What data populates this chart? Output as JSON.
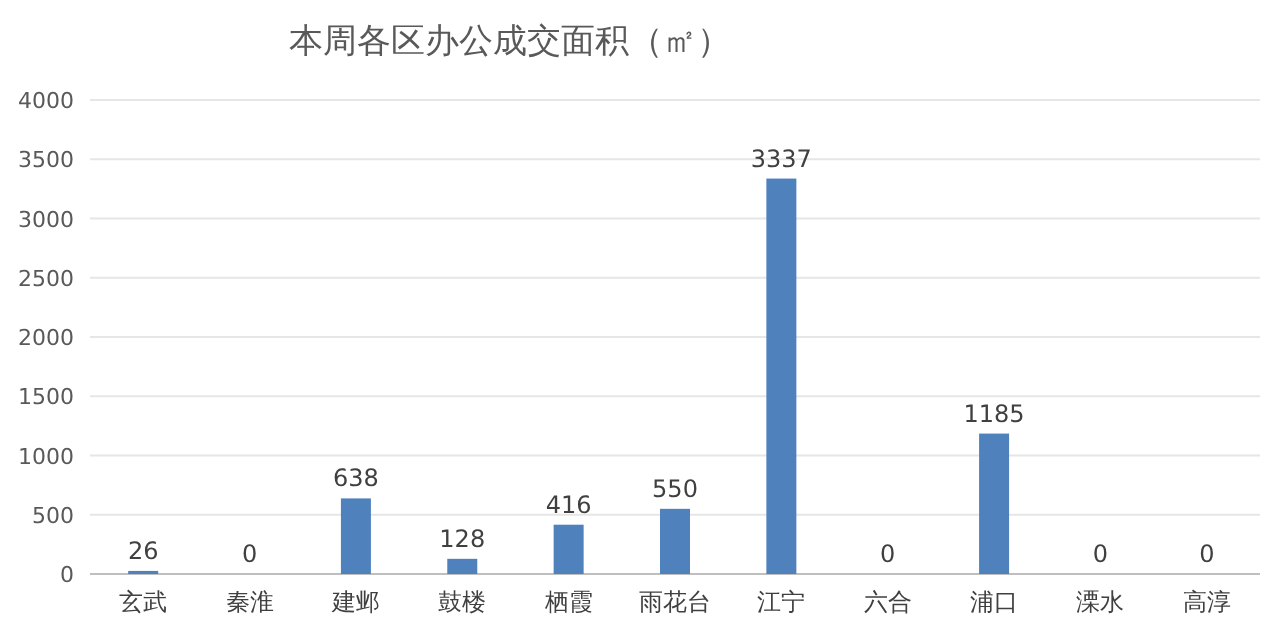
{
  "chart_data": {
    "type": "bar",
    "title": "本周各区办公成交面积（㎡）",
    "categories": [
      "玄武",
      "秦淮",
      "建邺",
      "鼓楼",
      "栖霞",
      "雨花台",
      "江宁",
      "六合",
      "浦口",
      "溧水",
      "高淳"
    ],
    "values": [
      26,
      0,
      638,
      128,
      416,
      550,
      3337,
      0,
      1185,
      0,
      0
    ],
    "color": "#4f81bd",
    "ylim": [
      0,
      4000
    ],
    "yticks": [
      0,
      500,
      1000,
      1500,
      2000,
      2500,
      3000,
      3500,
      4000
    ],
    "grid": "y",
    "data_labels": true
  }
}
